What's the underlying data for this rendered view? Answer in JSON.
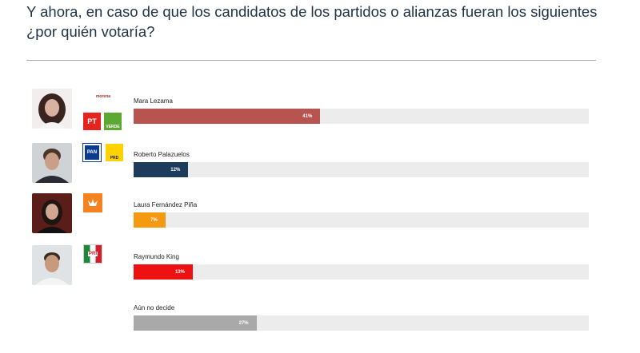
{
  "title": "Y ahora, en caso de que los candidatos de los partidos o alianzas fueran los siguientes ¿por quién votaría?",
  "logos": {
    "morena": "morena",
    "pt": "PT",
    "verde": "VERDE",
    "pan": "PAN",
    "prd": "PRD",
    "pri": "PRI"
  },
  "chart_data": {
    "type": "bar",
    "orientation": "horizontal",
    "title": "Y ahora, en caso de que los candidatos de los partidos o alianzas fueran los siguientes ¿por quién votaría?",
    "xlim": [
      0,
      100
    ],
    "grid": false,
    "categories": [
      "Mara Lezama",
      "Roberto Palazuelos",
      "Laura Fernández Piña",
      "Raymundo King",
      "Aún no decide"
    ],
    "values": [
      41,
      12,
      7,
      13,
      27
    ],
    "labels": [
      "41%",
      "12%",
      "7%",
      "13%",
      "27%"
    ],
    "colors": [
      "#b85450",
      "#1d3c5c",
      "#f59a10",
      "#ee1111",
      "#a9a9a9"
    ]
  }
}
